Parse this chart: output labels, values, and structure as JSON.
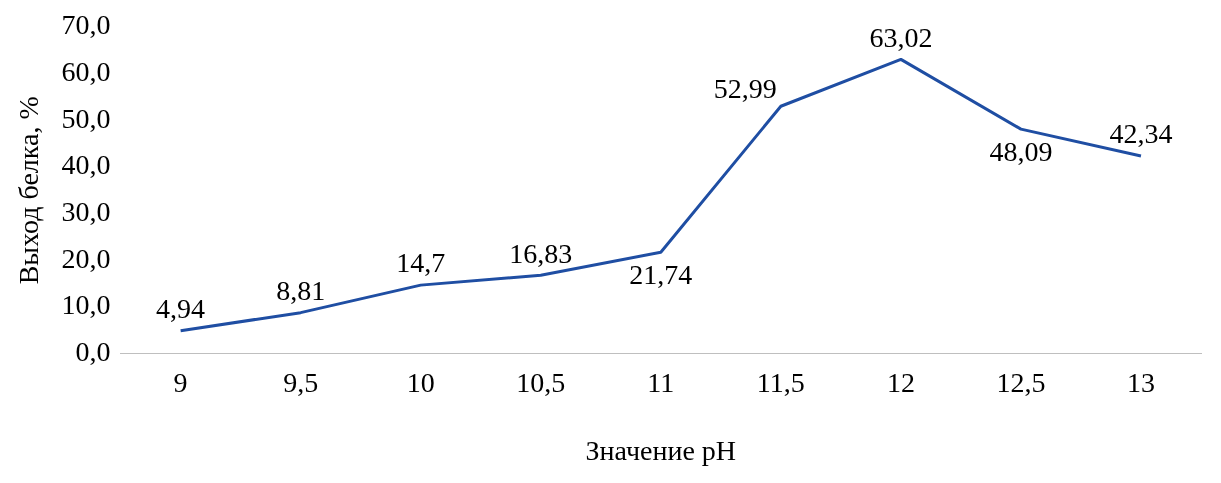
{
  "chart_data": {
    "type": "line",
    "xlabel": "Значение pH",
    "ylabel": "Выход белка, %",
    "categories": [
      "9",
      "9,5",
      "10",
      "10,5",
      "11",
      "11,5",
      "12",
      "12,5",
      "13"
    ],
    "series": [
      {
        "color": "#1f4ea3",
        "values": [
          4.94,
          8.81,
          14.7,
          16.83,
          21.74,
          52.99,
          63.02,
          48.09,
          42.34
        ],
        "value_labels": [
          "4,94",
          "8,81",
          "14,7",
          "16,83",
          "21,74",
          "52,99",
          "63,02",
          "48,09",
          "42,34"
        ]
      }
    ],
    "ylim": [
      0,
      70
    ],
    "yticks": [
      {
        "value": 0,
        "label": "0,0"
      },
      {
        "value": 10,
        "label": "10,0"
      },
      {
        "value": 20,
        "label": "20,0"
      },
      {
        "value": 30,
        "label": "30,0"
      },
      {
        "value": 40,
        "label": "40,0"
      },
      {
        "value": 50,
        "label": "50,0"
      },
      {
        "value": 60,
        "label": "60,0"
      },
      {
        "value": 70,
        "label": "70,0"
      }
    ],
    "grid": false,
    "legend": false,
    "marker": "none",
    "line_style": "solid"
  }
}
